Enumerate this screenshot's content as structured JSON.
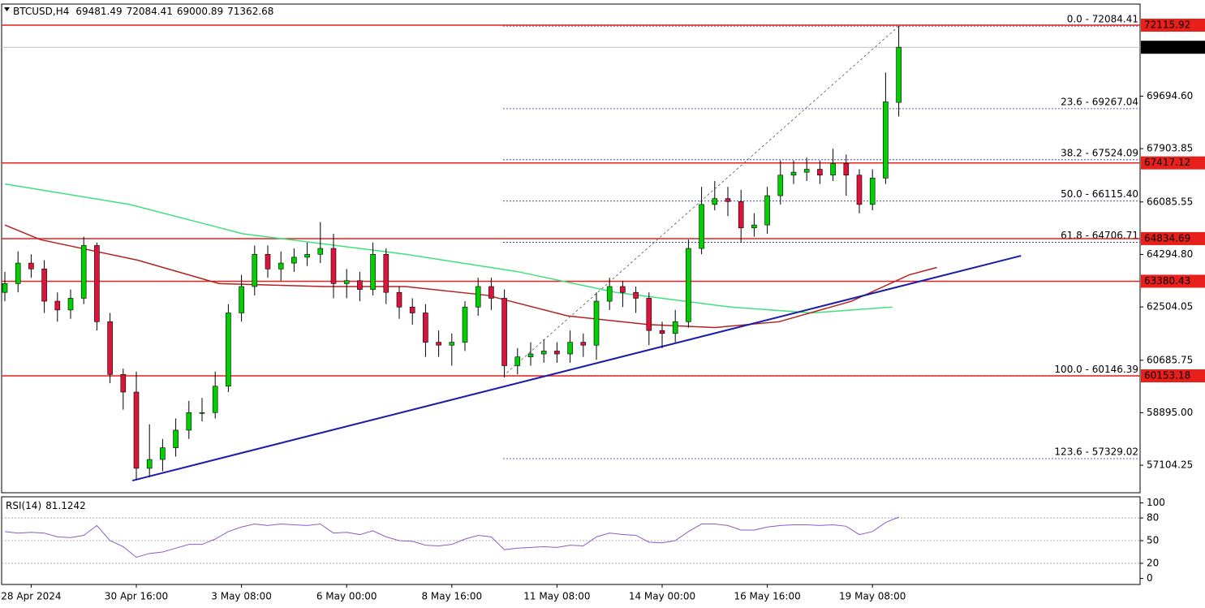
{
  "chart_data": {
    "type": "candlestick",
    "symbol": "BTCUSD,H4",
    "up_color": "#00d000",
    "down_color": "#dc143c",
    "ylim": [
      56166,
      72836
    ],
    "yticks": [
      57104.25,
      {
        "value": 58895,
        "label": "58895.00"
      },
      60685.75,
      62504.05,
      {
        "value": 64294.8,
        "label": "64294.80"
      },
      66085.55,
      67903.85,
      {
        "value": 69694.6,
        "label": "69694.60"
      }
    ],
    "xticks": [
      {
        "value": 2,
        "label": "28 Apr 2024"
      },
      {
        "value": 10,
        "label": "30 Apr 16:00"
      },
      {
        "value": 18,
        "label": "3 May 08:00"
      },
      {
        "value": 26,
        "label": "6 May 00:00"
      },
      {
        "value": 34,
        "label": "8 May 16:00"
      },
      {
        "value": 42,
        "label": "11 May 08:00"
      },
      {
        "value": 50,
        "label": "14 May 00:00"
      },
      {
        "value": 58,
        "label": "16 May 16:00"
      },
      {
        "value": 66,
        "label": "19 May 08:00"
      }
    ],
    "ohlc": {
      "open": [
        63000,
        63300,
        64000,
        63800,
        62700,
        62400,
        62800,
        64600,
        62000,
        60200,
        59600,
        57000,
        57300,
        57700,
        58300,
        58900,
        58900,
        59800,
        62300,
        63200,
        64300,
        63800,
        64000,
        64200,
        64300,
        64500,
        63300,
        63400,
        63100,
        64300,
        63000,
        62500,
        62300,
        61300,
        61200,
        61300,
        62500,
        63200,
        62800,
        60500,
        60800,
        60900,
        61000,
        60900,
        61300,
        61200,
        62700,
        63200,
        63000,
        62800,
        61700,
        61600,
        62000,
        64500,
        66000,
        66200,
        66100,
        65200,
        65300,
        66300,
        67000,
        67100,
        67200,
        67000,
        67400,
        67000,
        66000,
        66900,
        69481.49
      ],
      "high": [
        63700,
        64400,
        64300,
        64100,
        63000,
        63100,
        64900,
        64700,
        62300,
        60400,
        60300,
        58500,
        58000,
        58700,
        59300,
        59400,
        60300,
        62600,
        63600,
        64600,
        64600,
        64400,
        64500,
        64700,
        65400,
        65000,
        63800,
        63700,
        64700,
        64500,
        63200,
        62800,
        62600,
        61700,
        61600,
        62700,
        63500,
        63500,
        63100,
        61100,
        61300,
        61400,
        61300,
        61700,
        61600,
        63000,
        63500,
        63400,
        63200,
        63000,
        62000,
        62400,
        64800,
        66600,
        66800,
        66600,
        66500,
        65700,
        66600,
        67500,
        67500,
        67600,
        67500,
        67900,
        67700,
        67200,
        67200,
        70500,
        72084.41
      ],
      "low": [
        62700,
        63000,
        63500,
        62300,
        62000,
        62100,
        62600,
        61700,
        59900,
        59000,
        56600,
        56700,
        56900,
        57400,
        58000,
        58600,
        58700,
        59600,
        62000,
        62900,
        63500,
        63400,
        63700,
        63900,
        64000,
        62800,
        62800,
        62700,
        62900,
        62600,
        62100,
        61900,
        60800,
        60800,
        60500,
        61000,
        62200,
        62400,
        60100,
        60200,
        60500,
        60600,
        60600,
        60600,
        60800,
        60700,
        62400,
        62500,
        62300,
        61200,
        61100,
        61300,
        61800,
        64300,
        65800,
        65600,
        64700,
        64900,
        65000,
        66000,
        66700,
        66800,
        66700,
        66800,
        66300,
        65700,
        65800,
        66700,
        69000.89
      ],
      "close": [
        63300,
        64000,
        63800,
        62700,
        62400,
        62800,
        64600,
        62000,
        60200,
        59600,
        57000,
        57300,
        57700,
        58300,
        58900,
        58900,
        59800,
        62300,
        63200,
        64300,
        63800,
        64000,
        64200,
        64300,
        64500,
        63300,
        63400,
        63100,
        64300,
        63000,
        62500,
        62300,
        61300,
        61200,
        61300,
        62500,
        63200,
        62800,
        60500,
        60800,
        60900,
        61000,
        60900,
        61300,
        61200,
        62700,
        63200,
        63000,
        62800,
        61700,
        61600,
        62000,
        64500,
        66000,
        66200,
        66100,
        65200,
        65300,
        66300,
        67000,
        67100,
        67200,
        67000,
        67400,
        67000,
        66000,
        66900,
        69500,
        71362.68
      ]
    },
    "moving_averages": [
      {
        "color": "#3ee07d",
        "x": [
          0,
          9.5,
          18.1,
          30.5,
          39.1,
          46.5,
          55.2,
          61.4,
          67.5
        ],
        "values": [
          66700,
          66000,
          65000,
          64300,
          63700,
          63000,
          62500,
          62300,
          62500
        ]
      },
      {
        "color": "#b22222",
        "x": [
          0,
          2.7,
          10.1,
          16.3,
          24.3,
          30.5,
          36.7,
          42.8,
          49,
          54,
          58.9,
          64.4,
          68.8,
          70.9
        ],
        "values": [
          65300,
          64800,
          64100,
          63300,
          63200,
          63200,
          62900,
          62200,
          61900,
          61800,
          62000,
          62700,
          63600,
          63850
        ]
      }
    ],
    "levels": [
      72115.92,
      67417.12,
      64834.69,
      63380.43,
      60153.18
    ],
    "level_color": "#e8201c",
    "trendline": {
      "color": "#1c1ca8",
      "x": [
        9.7,
        77.3
      ],
      "values": [
        56580,
        64250
      ]
    },
    "fibonacci": {
      "color": "#2a2aa0",
      "anchor_x": [
        37.9,
        68
      ],
      "anchor_values": [
        60146.39,
        72084.41
      ],
      "levels": [
        {
          "value": 72084.41,
          "label": "0.0 - 72084.41"
        },
        {
          "value": 69267.04,
          "label": "23.6 - 69267.04"
        },
        {
          "value": 67524.09,
          "label": "38.2 - 67524.09"
        },
        {
          "value": 66115.4,
          "label": "50.0 - 66115.40"
        },
        {
          "value": 64706.71,
          "label": "61.8 - 64706.71"
        },
        {
          "value": 60146.39,
          "label": "100.0 - 60146.39"
        },
        {
          "value": 57329.02,
          "label": "123.6 - 57329.02"
        }
      ]
    },
    "rsi": {
      "label": "RSI(14)",
      "color": "#8a5cc8",
      "ylim": [
        -8,
        108
      ],
      "yticks": [
        0,
        20,
        50,
        80,
        100
      ],
      "levels": [
        20,
        50,
        80
      ],
      "values": [
        62,
        60,
        61,
        60,
        55,
        54,
        57,
        70,
        50,
        42,
        28,
        33,
        35,
        40,
        45,
        45,
        52,
        62,
        68,
        72,
        70,
        72,
        71,
        70,
        72,
        60,
        61,
        58,
        63,
        55,
        50,
        49,
        44,
        43,
        45,
        52,
        57,
        55,
        38,
        40,
        41,
        42,
        41,
        44,
        43,
        55,
        60,
        58,
        57,
        48,
        47,
        50,
        62,
        72,
        72,
        70,
        64,
        64,
        68,
        70,
        71,
        71,
        70,
        71,
        69,
        58,
        62,
        74,
        81.1242
      ]
    }
  }
}
